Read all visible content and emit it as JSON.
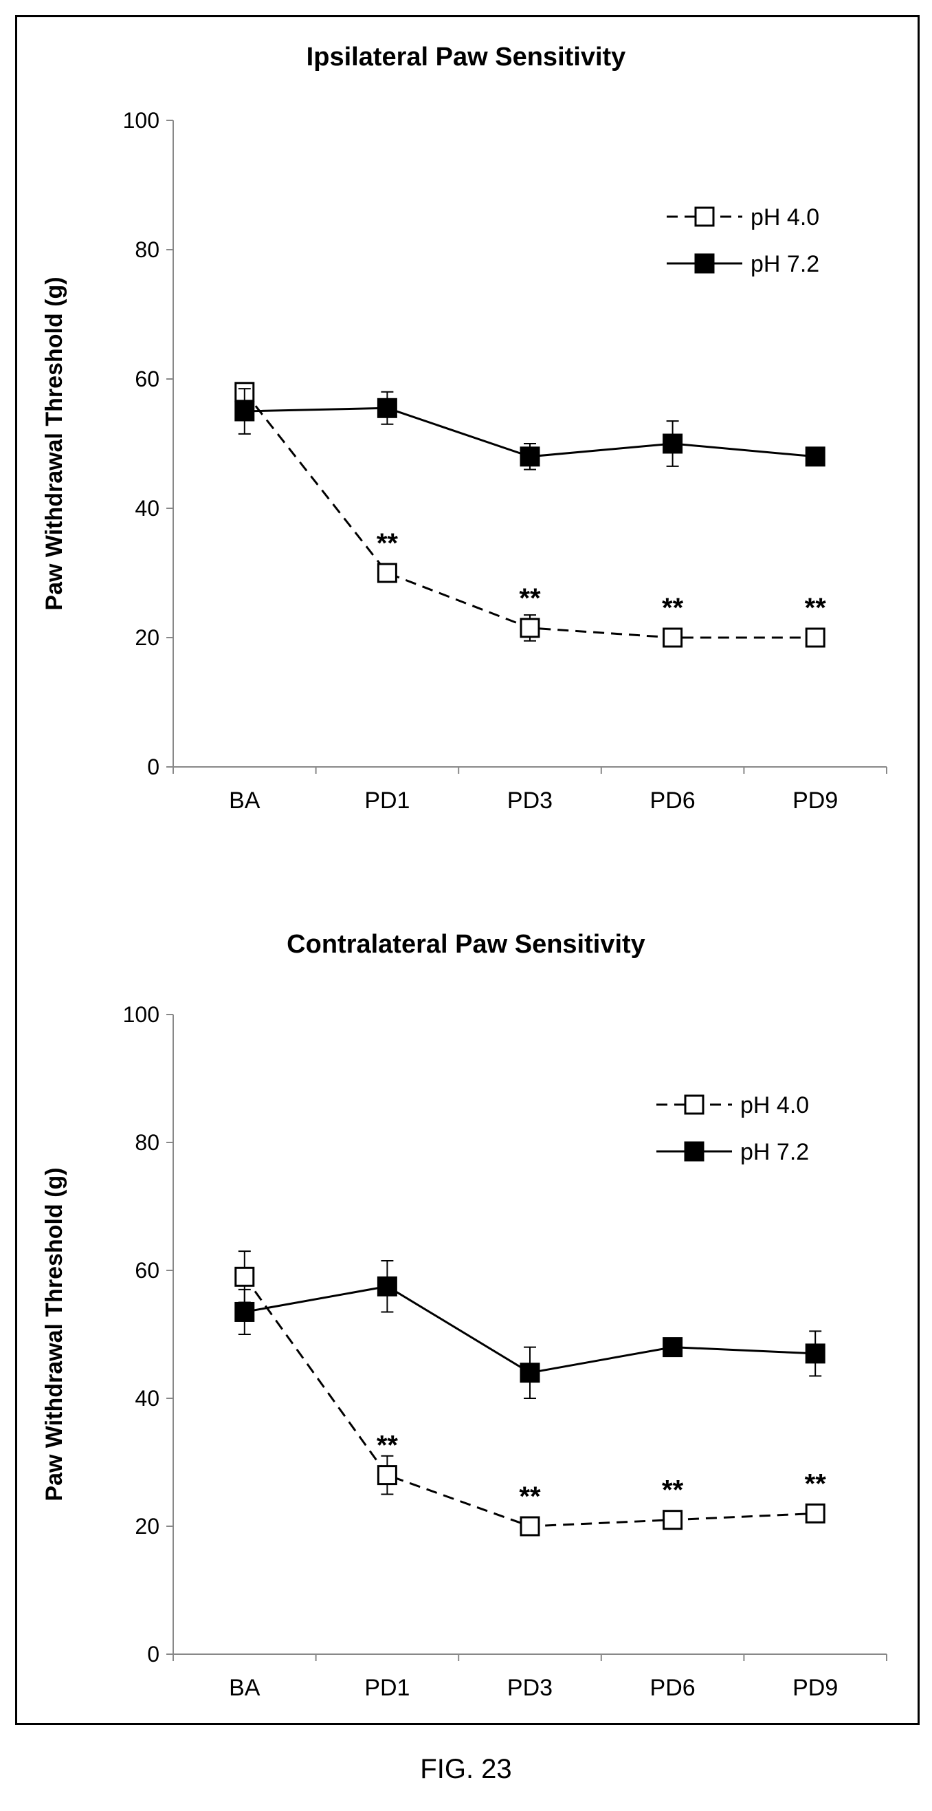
{
  "figure_caption": "FIG. 23",
  "chart_data": [
    {
      "type": "line",
      "title": "Ipsilateral Paw Sensitivity",
      "xlabel": "",
      "ylabel": "Paw Withdrawal Threshold (g)",
      "ylim": [
        0,
        100
      ],
      "yticks": [
        "0",
        "20",
        "40",
        "60",
        "80",
        "100"
      ],
      "categories": [
        "BA",
        "PD1",
        "PD3",
        "PD6",
        "PD9"
      ],
      "legend_position": "top-right",
      "grid": false,
      "series": [
        {
          "name": "pH 4.0",
          "style": "dashed",
          "marker": "open-square",
          "values": [
            58,
            30,
            21.5,
            20,
            20
          ],
          "errors": [
            0,
            0,
            2,
            0,
            0
          ]
        },
        {
          "name": "pH 7.2",
          "style": "solid",
          "marker": "filled-square",
          "values": [
            55,
            55.5,
            48,
            50,
            48
          ],
          "errors": [
            3.5,
            2.5,
            2,
            3.5,
            0
          ]
        }
      ],
      "annotations": [
        "",
        "**",
        "**",
        "**",
        "**"
      ]
    },
    {
      "type": "line",
      "title": "Contralateral Paw Sensitivity",
      "xlabel": "",
      "ylabel": "Paw Withdrawal Threshold (g)",
      "ylim": [
        0,
        100
      ],
      "yticks": [
        "0",
        "20",
        "40",
        "60",
        "80",
        "100"
      ],
      "categories": [
        "BA",
        "PD1",
        "PD3",
        "PD6",
        "PD9"
      ],
      "legend_position": "top-right",
      "grid": false,
      "series": [
        {
          "name": "pH 4.0",
          "style": "dashed",
          "marker": "open-square",
          "values": [
            59,
            28,
            20,
            21,
            22
          ],
          "errors": [
            4,
            3,
            0,
            0,
            0
          ]
        },
        {
          "name": "pH 7.2",
          "style": "solid",
          "marker": "filled-square",
          "values": [
            53.5,
            57.5,
            44,
            48,
            47
          ],
          "errors": [
            3.5,
            4,
            4,
            0,
            3.5
          ]
        }
      ],
      "annotations": [
        "",
        "**",
        "**",
        "**",
        "**"
      ]
    }
  ]
}
